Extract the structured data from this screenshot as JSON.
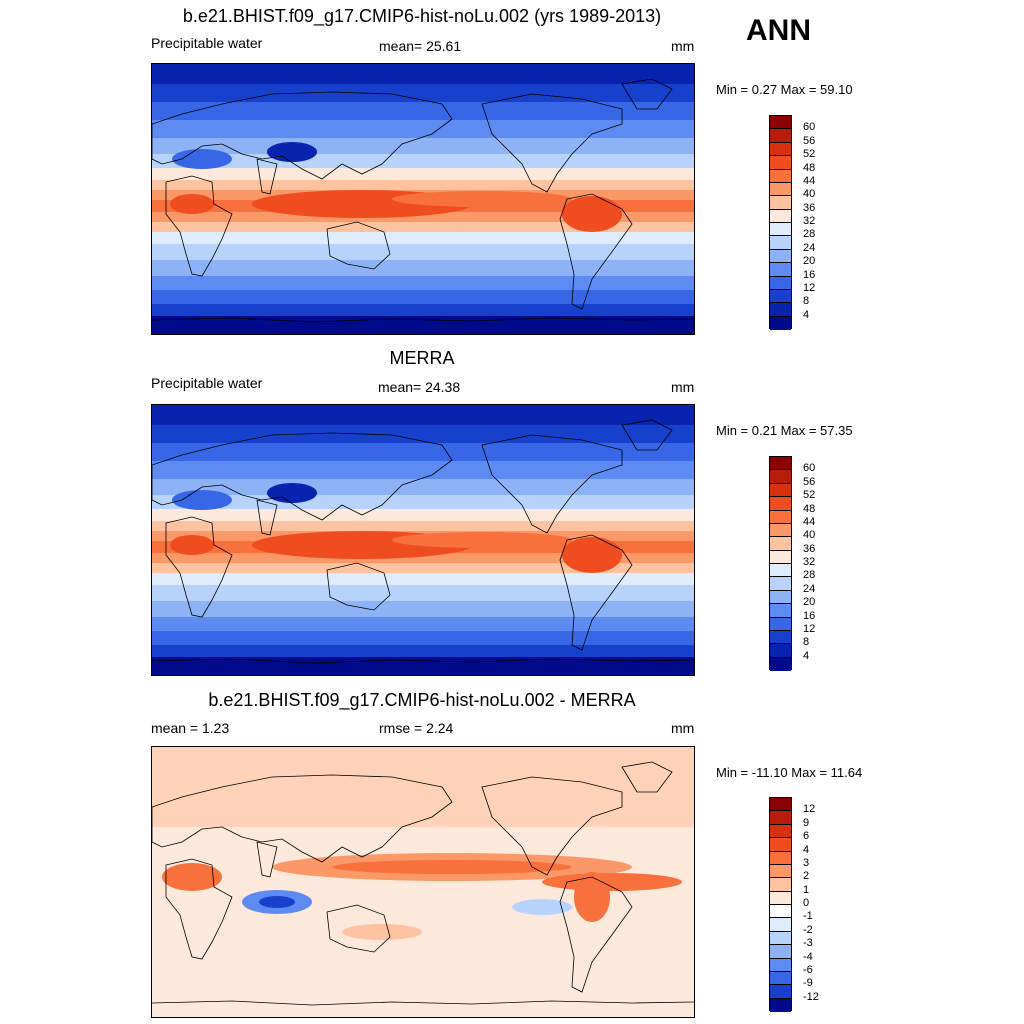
{
  "season": "ANN",
  "panels": [
    {
      "title": "b.e21.BHIST.f09_g17.CMIP6-hist-noLu.002 (yrs 1989-2013)",
      "left_label": "Precipitable water",
      "center_label": "mean=  25.61",
      "units": "mm",
      "minmax": "Min =   0.27 Max =  59.10",
      "colorbar_labels": [
        "60",
        "56",
        "52",
        "48",
        "44",
        "40",
        "36",
        "32",
        "28",
        "24",
        "20",
        "16",
        "12",
        "8",
        "4"
      ],
      "colorbar_colors": [
        "#8b0000",
        "#b81c0a",
        "#d7310f",
        "#ef4d20",
        "#f8703c",
        "#fa9868",
        "#fdc3a1",
        "#fde9dc",
        "#deecfb",
        "#b8d3fb",
        "#8db2f6",
        "#5d8bf1",
        "#3767e6",
        "#1740cd",
        "#0823ad",
        "#000a8a"
      ],
      "map_kind": "field"
    },
    {
      "title": "MERRA",
      "left_label": "Precipitable water",
      "center_label": "mean=  24.38",
      "units": "mm",
      "minmax": "Min =   0.21 Max =  57.35",
      "colorbar_labels": [
        "60",
        "56",
        "52",
        "48",
        "44",
        "40",
        "36",
        "32",
        "28",
        "24",
        "20",
        "16",
        "12",
        "8",
        "4"
      ],
      "colorbar_colors": [
        "#8b0000",
        "#b81c0a",
        "#d7310f",
        "#ef4d20",
        "#f8703c",
        "#fa9868",
        "#fdc3a1",
        "#fde9dc",
        "#deecfb",
        "#b8d3fb",
        "#8db2f6",
        "#5d8bf1",
        "#3767e6",
        "#1740cd",
        "#0823ad",
        "#000a8a"
      ],
      "map_kind": "field"
    },
    {
      "title": "b.e21.BHIST.f09_g17.CMIP6-hist-noLu.002 - MERRA",
      "left_label": "mean =    1.23",
      "center_label": "rmse =    2.24",
      "units": "mm",
      "minmax": "Min = -11.10 Max =  11.64",
      "colorbar_labels": [
        "12",
        "9",
        "6",
        "4",
        "3",
        "2",
        "1",
        "0",
        "-1",
        "-2",
        "-3",
        "-4",
        "-6",
        "-9",
        "-12"
      ],
      "colorbar_colors": [
        "#8b0000",
        "#b81c0a",
        "#d7310f",
        "#ef4d20",
        "#f8703c",
        "#fa9868",
        "#fdc3a1",
        "#fde9dc",
        "#ffffff",
        "#deecfb",
        "#b8d3fb",
        "#8db2f6",
        "#5d8bf1",
        "#3767e6",
        "#1740cd",
        "#000a8a"
      ],
      "map_kind": "diff"
    }
  ]
}
